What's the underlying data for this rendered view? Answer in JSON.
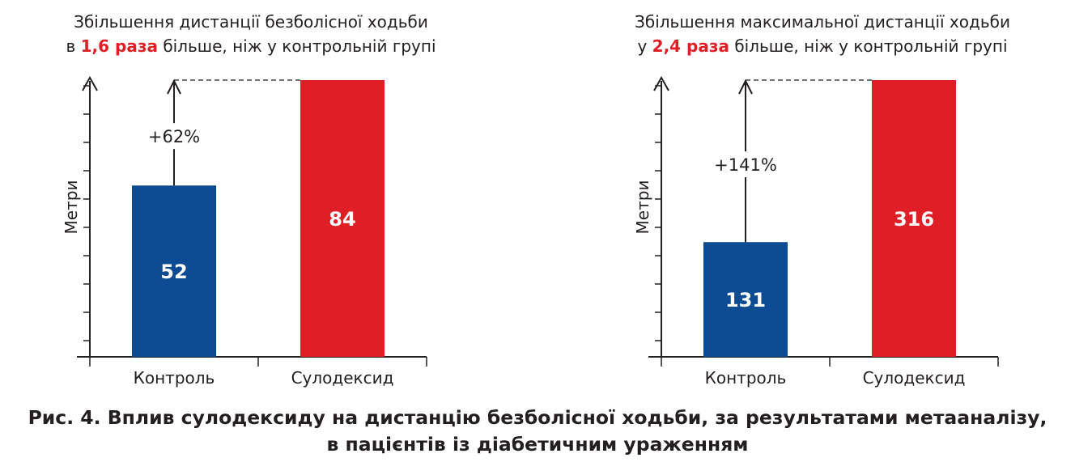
{
  "colors": {
    "control": "#0d4c92",
    "sulodexide": "#e01e26",
    "highlight": "#e01e26",
    "text": "#231f20"
  },
  "chart_data": [
    {
      "type": "bar",
      "title_line1": "Збільшення дистанції безболісної ходьби",
      "title_line2_pre": "в ",
      "title_line2_highlight": "1,6 раза",
      "title_line2_post": " більше, ніж у контрольній групі",
      "ylabel": "Метри",
      "xlabel": "",
      "categories": [
        "Контроль",
        "Сулодексид"
      ],
      "values": [
        52,
        84
      ],
      "value_labels": [
        "52",
        "84"
      ],
      "ylim": [
        0,
        84
      ],
      "increase_label": "+62%",
      "yticks": 10,
      "grid": false
    },
    {
      "type": "bar",
      "title_line1": "Збільшення максимальної дистанції ходьби",
      "title_line2_pre": "у ",
      "title_line2_highlight": "2,4 раза",
      "title_line2_post": " більше, ніж у контрольній групі",
      "ylabel": "Метри",
      "xlabel": "",
      "categories": [
        "Контроль",
        "Сулодексид"
      ],
      "values": [
        131,
        316
      ],
      "value_labels": [
        "131",
        "316"
      ],
      "ylim": [
        0,
        316
      ],
      "increase_label": "+141%",
      "yticks": 10,
      "grid": false
    }
  ],
  "caption_line1": "Рис. 4. Вплив сулодексиду на дистанцію безболісної ходьби, за результатами метааналізу,",
  "caption_line2": "в пацієнтів із діабетичним ураженням"
}
